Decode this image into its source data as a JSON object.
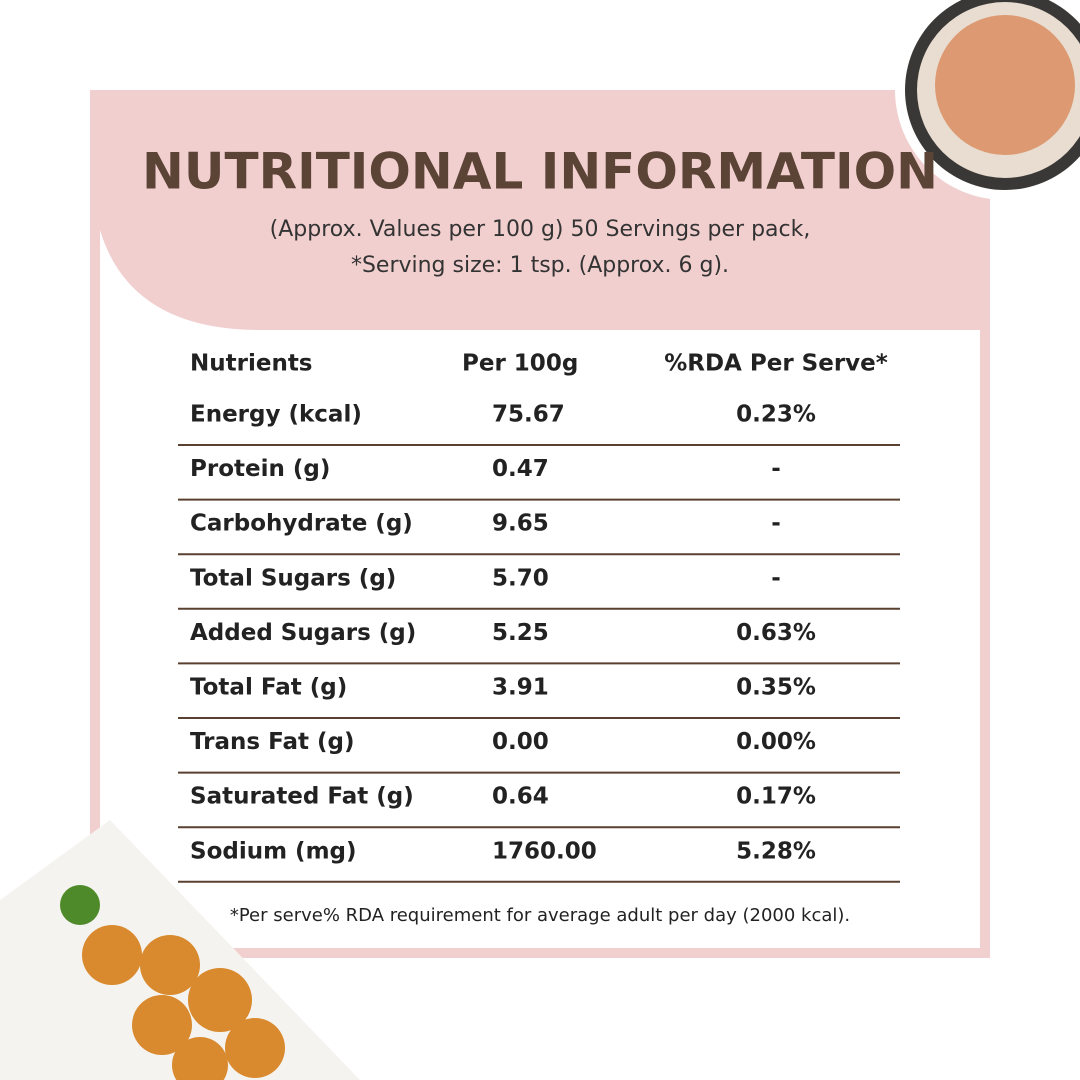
{
  "header": {
    "title": "NUTRITIONAL INFORMATION",
    "subtitle": [
      "(Approx. Values per 100 g) 50 Servings per pack,",
      "*Serving size: 1 tsp. (Approx. 6 g)."
    ]
  },
  "table": {
    "columns": [
      "Nutrients",
      "Per 100g",
      "%RDA Per Serve*"
    ],
    "rows": [
      [
        "Energy (kcal)",
        "75.67",
        "0.23%"
      ],
      [
        "Protein (g)",
        "0.47",
        "-"
      ],
      [
        "Carbohydrate (g)",
        "9.65",
        "-"
      ],
      [
        "Total Sugars (g)",
        "5.70",
        "-"
      ],
      [
        "Added Sugars (g)",
        "5.25",
        "0.63%"
      ],
      [
        "Total Fat (g)",
        "3.91",
        "0.35%"
      ],
      [
        "Trans Fat (g)",
        "0.00",
        "0.00%"
      ],
      [
        "Saturated Fat (g)",
        "0.64",
        "0.17%"
      ],
      [
        "Sodium (mg)",
        "1760.00",
        "5.28%"
      ]
    ]
  },
  "footnote": "*Per serve% RDA requirement for average adult per day (2000 kcal)."
}
